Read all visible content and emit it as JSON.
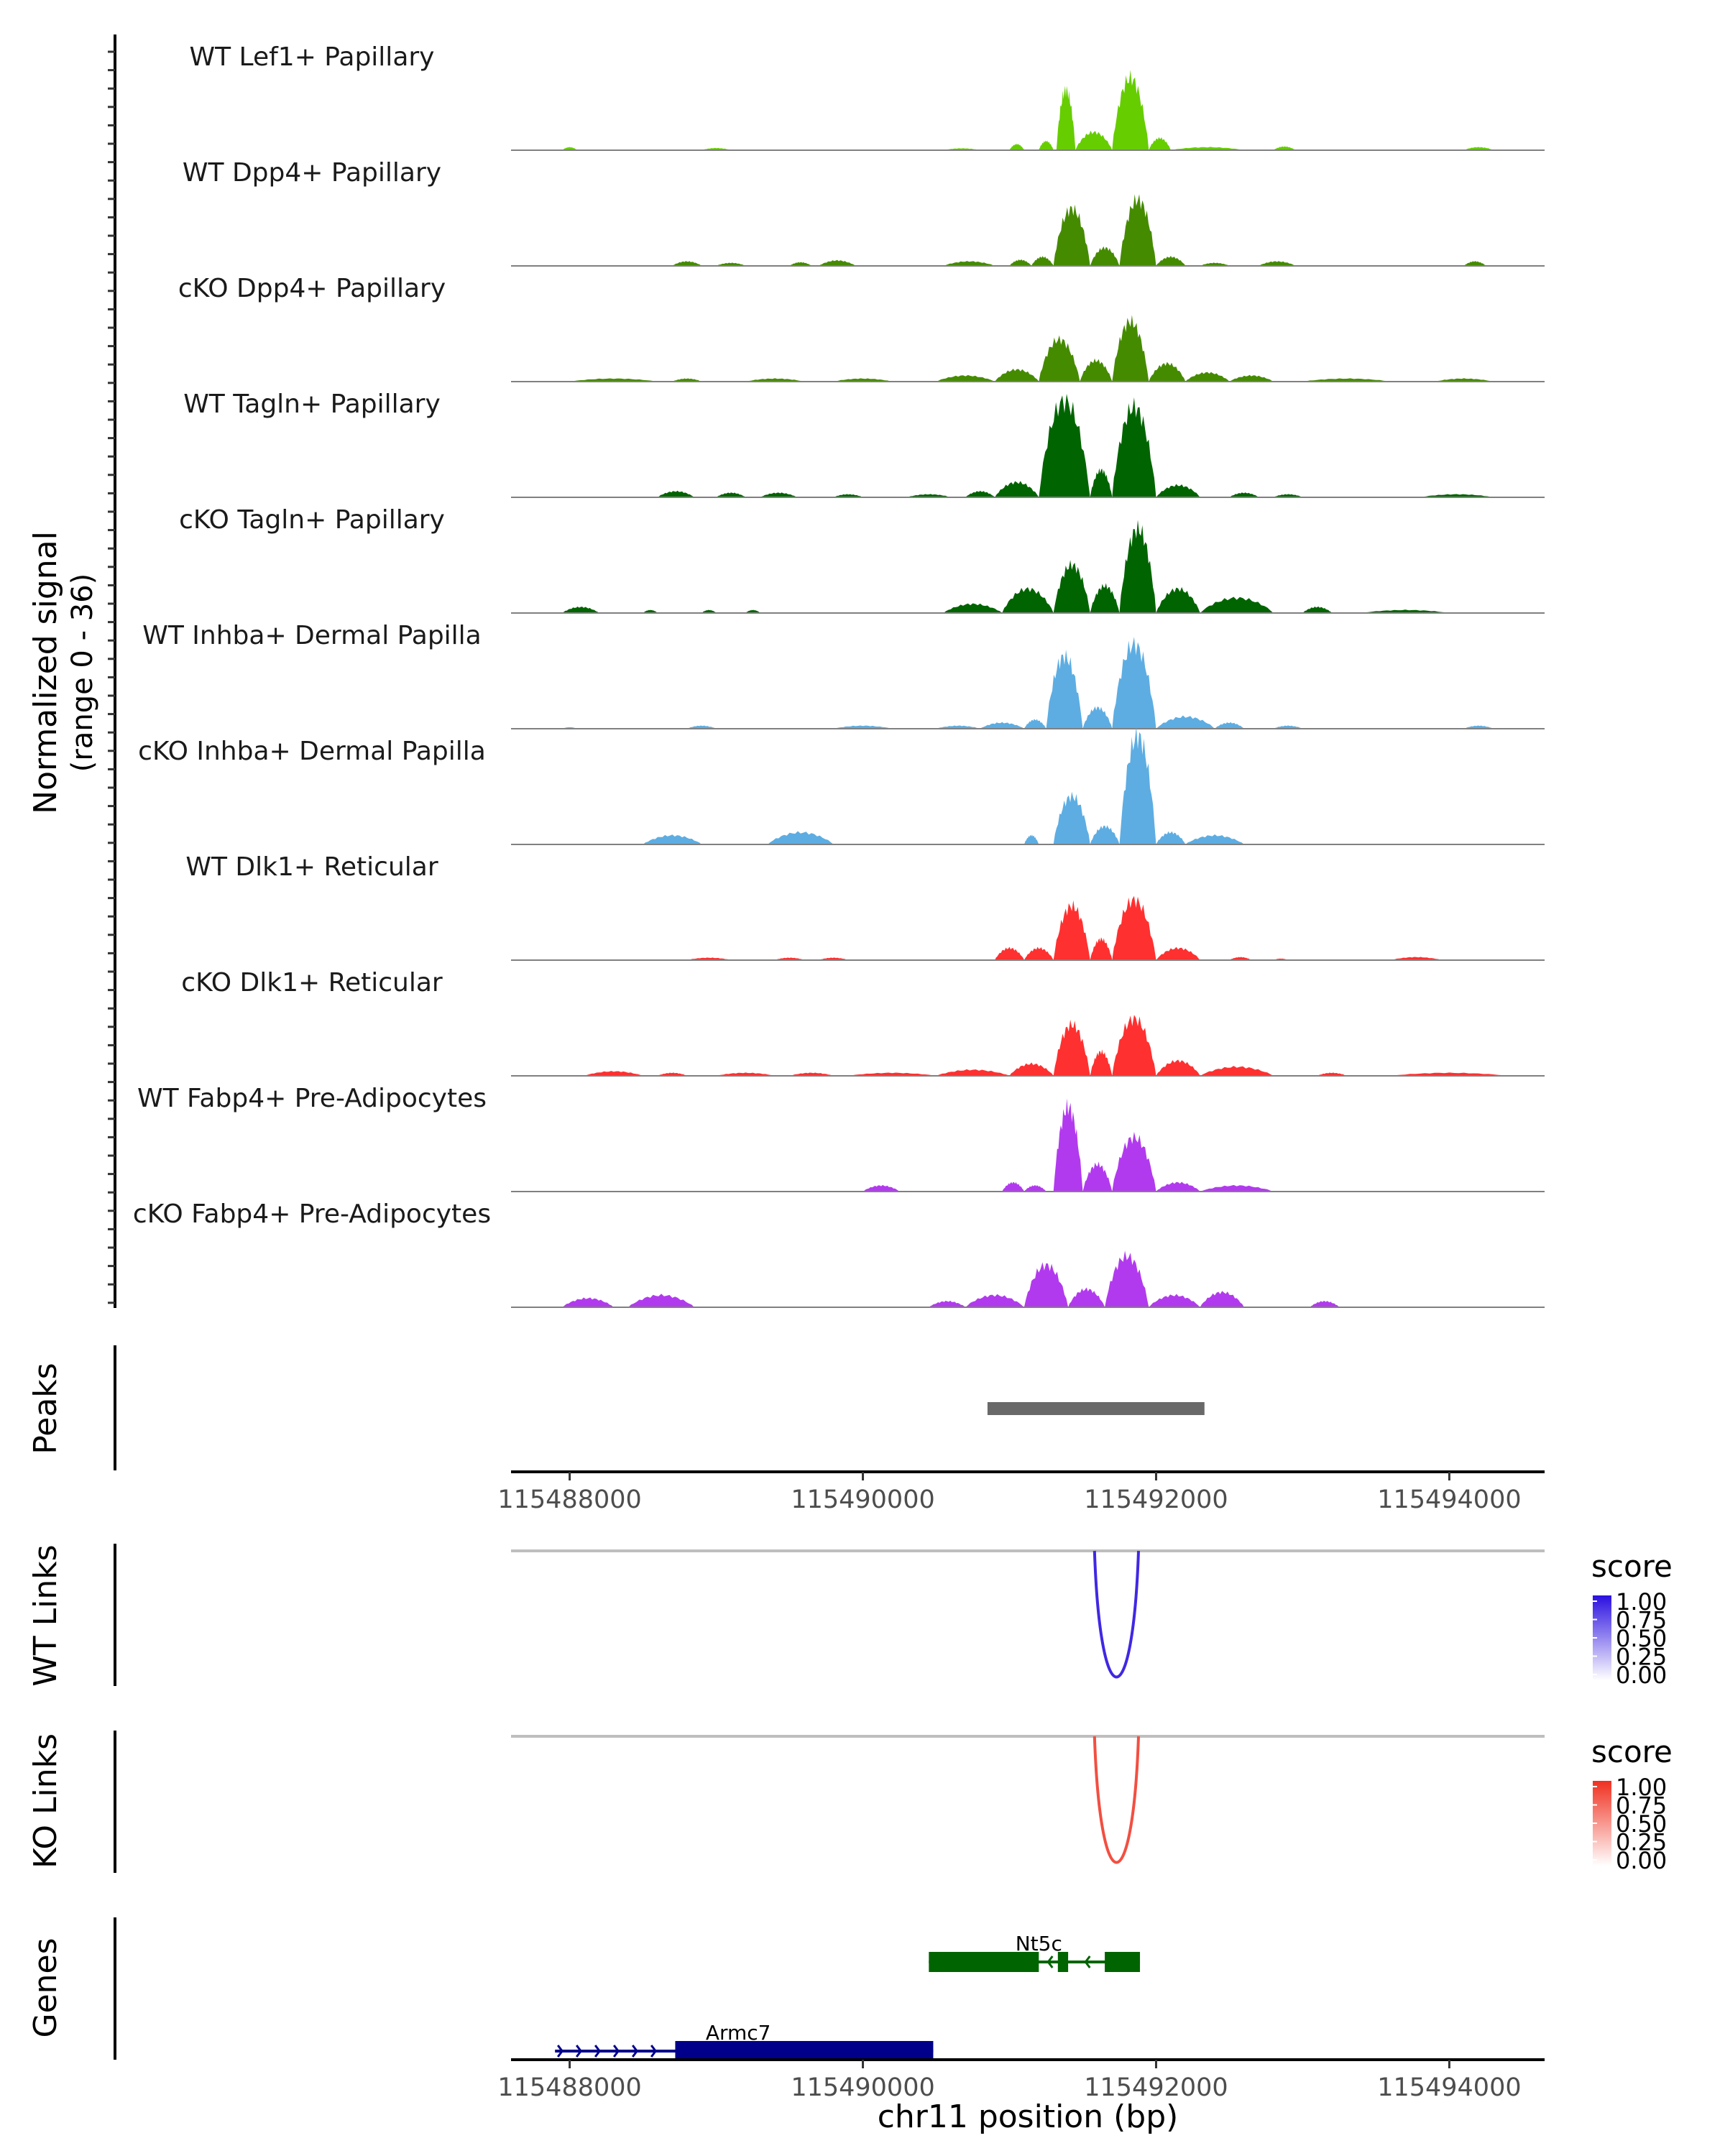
{
  "chart_data": {
    "type": "area",
    "title": "",
    "xlabel": "chr11 position (bp)",
    "xlim": [
      115487600,
      115494650
    ],
    "x_ticks": [
      115488000,
      115490000,
      115492000,
      115494000
    ],
    "x_tick_labels": [
      "115488000",
      "115490000",
      "115492000",
      "115494000"
    ],
    "coverage": {
      "ylabel": "Normalized signal",
      "ylabel_sub": "(range 0 - 36)",
      "ylim": [
        0,
        36
      ],
      "tracks": [
        {
          "name": "WT Lef1+ Papillary",
          "color": "#66cd00",
          "bumps": [
            [
              115487950,
              115488050,
              1
            ],
            [
              115488900,
              115489100,
              0.7
            ],
            [
              115490550,
              115490800,
              0.6
            ],
            [
              115491000,
              115491100,
              2
            ],
            [
              115491200,
              115491300,
              3
            ],
            [
              115491320,
              115491450,
              20
            ],
            [
              115491450,
              115491700,
              6
            ],
            [
              115491700,
              115491950,
              24
            ],
            [
              115491950,
              115492100,
              4
            ],
            [
              115492100,
              115492600,
              1
            ],
            [
              115492800,
              115492950,
              1.2
            ],
            [
              115494100,
              115494300,
              1
            ]
          ]
        },
        {
          "name": "WT Dpp4+ Papillary",
          "color": "#458b00",
          "bumps": [
            [
              115488700,
              115488900,
              1.5
            ],
            [
              115489000,
              115489200,
              1
            ],
            [
              115489500,
              115489650,
              1.2
            ],
            [
              115489700,
              115489950,
              1.8
            ],
            [
              115490550,
              115490900,
              1.5
            ],
            [
              115491000,
              115491150,
              2
            ],
            [
              115491150,
              115491300,
              3
            ],
            [
              115491300,
              115491550,
              19
            ],
            [
              115491550,
              115491750,
              6
            ],
            [
              115491750,
              115492000,
              22
            ],
            [
              115492000,
              115492200,
              3
            ],
            [
              115492300,
              115492500,
              1
            ],
            [
              115492700,
              115492950,
              1.5
            ],
            [
              115494100,
              115494250,
              1.5
            ]
          ]
        },
        {
          "name": "cKO Dpp4+ Papillary",
          "color": "#458b00",
          "bumps": [
            [
              115488000,
              115488600,
              1
            ],
            [
              115488700,
              115488900,
              1
            ],
            [
              115489200,
              115489600,
              1
            ],
            [
              115489800,
              115490200,
              1
            ],
            [
              115490500,
              115490900,
              2
            ],
            [
              115490900,
              115491200,
              4
            ],
            [
              115491200,
              115491480,
              14
            ],
            [
              115491480,
              115491700,
              7
            ],
            [
              115491700,
              115491950,
              20
            ],
            [
              115491950,
              115492200,
              6
            ],
            [
              115492200,
              115492500,
              3
            ],
            [
              115492500,
              115492800,
              2
            ],
            [
              115493000,
              115493600,
              1
            ],
            [
              115493900,
              115494300,
              1
            ]
          ]
        },
        {
          "name": "WT Tagln+ Papillary",
          "color": "#006400",
          "bumps": [
            [
              115488600,
              115488850,
              2
            ],
            [
              115489000,
              115489200,
              1.5
            ],
            [
              115489300,
              115489550,
              1.5
            ],
            [
              115489800,
              115490000,
              1
            ],
            [
              115490300,
              115490600,
              1
            ],
            [
              115490700,
              115490900,
              2
            ],
            [
              115490900,
              115491200,
              5
            ],
            [
              115491200,
              115491550,
              32
            ],
            [
              115491550,
              115491700,
              9
            ],
            [
              115491700,
              115492000,
              30
            ],
            [
              115492000,
              115492300,
              4
            ],
            [
              115492500,
              115492700,
              1.5
            ],
            [
              115492800,
              115493000,
              1
            ],
            [
              115493800,
              115494300,
              1
            ]
          ]
        },
        {
          "name": "cKO Tagln+ Papillary",
          "color": "#006400",
          "bumps": [
            [
              115487950,
              115488200,
              2
            ],
            [
              115488500,
              115488600,
              1
            ],
            [
              115488900,
              115489000,
              1
            ],
            [
              115489200,
              115489300,
              1
            ],
            [
              115490550,
              115490950,
              3
            ],
            [
              115490950,
              115491300,
              8
            ],
            [
              115491300,
              115491550,
              16
            ],
            [
              115491550,
              115491750,
              9
            ],
            [
              115491750,
              115492000,
              28
            ],
            [
              115492000,
              115492300,
              8
            ],
            [
              115492300,
              115492800,
              5
            ],
            [
              115493000,
              115493200,
              2
            ],
            [
              115493400,
              115494000,
              1
            ]
          ]
        },
        {
          "name": "WT Inhba+ Dermal Papilla",
          "color": "#5dade2",
          "bumps": [
            [
              115487950,
              115488050,
              0.5
            ],
            [
              115488800,
              115489000,
              1
            ],
            [
              115489800,
              115490200,
              1
            ],
            [
              115490500,
              115490800,
              1
            ],
            [
              115490800,
              115491100,
              2
            ],
            [
              115491100,
              115491250,
              3
            ],
            [
              115491250,
              115491500,
              24
            ],
            [
              115491500,
              115491700,
              7
            ],
            [
              115491700,
              115492000,
              28
            ],
            [
              115492000,
              115492400,
              4
            ],
            [
              115492400,
              115492600,
              2
            ],
            [
              115492800,
              115493000,
              1
            ],
            [
              115494100,
              115494300,
              1
            ]
          ]
        },
        {
          "name": "cKO Inhba+ Dermal Papilla",
          "color": "#5dade2",
          "bumps": [
            [
              115488500,
              115488900,
              3
            ],
            [
              115489350,
              115489800,
              4
            ],
            [
              115491100,
              115491200,
              3
            ],
            [
              115491300,
              115491550,
              16
            ],
            [
              115491550,
              115491750,
              6
            ],
            [
              115491750,
              115492000,
              36
            ],
            [
              115492000,
              115492200,
              4
            ],
            [
              115492200,
              115492600,
              3
            ]
          ]
        },
        {
          "name": "WT Dlk1+ Reticular",
          "color": "#ff3030",
          "bumps": [
            [
              115488800,
              115489100,
              0.8
            ],
            [
              115489400,
              115489600,
              0.8
            ],
            [
              115489700,
              115489900,
              0.8
            ],
            [
              115490900,
              115491100,
              4
            ],
            [
              115491100,
              115491300,
              4
            ],
            [
              115491300,
              115491550,
              18
            ],
            [
              115491550,
              115491700,
              7
            ],
            [
              115491700,
              115492000,
              20
            ],
            [
              115492000,
              115492300,
              4
            ],
            [
              115492500,
              115492650,
              1
            ],
            [
              115492800,
              115492900,
              0.5
            ],
            [
              115493600,
              115493950,
              1
            ]
          ]
        },
        {
          "name": "cKO Dlk1+ Reticular",
          "color": "#ff3030",
          "bumps": [
            [
              115488100,
              115488500,
              1.5
            ],
            [
              115488600,
              115488800,
              1
            ],
            [
              115489000,
              115489400,
              1
            ],
            [
              115489500,
              115489800,
              1
            ],
            [
              115489900,
              115490500,
              1
            ],
            [
              115490500,
              115491000,
              2
            ],
            [
              115491000,
              115491300,
              4
            ],
            [
              115491300,
              115491550,
              17
            ],
            [
              115491550,
              115491700,
              8
            ],
            [
              115491700,
              115492000,
              19
            ],
            [
              115492000,
              115492300,
              5
            ],
            [
              115492300,
              115492800,
              3
            ],
            [
              115493100,
              115493300,
              1
            ],
            [
              115493600,
              115494400,
              1
            ]
          ]
        },
        {
          "name": "WT Fabp4+ Pre-Adipocytes",
          "color": "#b23aee",
          "bumps": [
            [
              115490000,
              115490250,
              2
            ],
            [
              115490950,
              115491100,
              3
            ],
            [
              115491100,
              115491250,
              2
            ],
            [
              115491300,
              115491500,
              28
            ],
            [
              115491500,
              115491700,
              9
            ],
            [
              115491700,
              115492000,
              18
            ],
            [
              115492000,
              115492300,
              3
            ],
            [
              115492300,
              115492800,
              2
            ]
          ]
        },
        {
          "name": "cKO Fabp4+ Pre-Adipocytes",
          "color": "#b23aee",
          "bumps": [
            [
              115487950,
              115488300,
              3
            ],
            [
              115488400,
              115488850,
              4
            ],
            [
              115490450,
              115490700,
              2
            ],
            [
              115490700,
              115491100,
              4
            ],
            [
              115491100,
              115491400,
              14
            ],
            [
              115491400,
              115491650,
              6
            ],
            [
              115491650,
              115491950,
              17
            ],
            [
              115491950,
              115492300,
              4
            ],
            [
              115492300,
              115492600,
              5
            ],
            [
              115493050,
              115493250,
              2
            ]
          ]
        }
      ]
    },
    "peaks": {
      "ylabel": "Peaks",
      "intervals": [
        [
          115490850,
          115492330
        ]
      ],
      "color": "#696969"
    },
    "wt_links": {
      "ylabel": "WT Links",
      "links": [
        {
          "start": 115491580,
          "end": 115491880,
          "score": 0.9
        }
      ],
      "legend": {
        "title": "score",
        "ticks": [
          "1.00",
          "0.75",
          "0.50",
          "0.25",
          "0.00"
        ],
        "color_low": "#ffffff",
        "color_high": "#2b10e0"
      }
    },
    "ko_links": {
      "ylabel": "KO Links",
      "links": [
        {
          "start": 115491580,
          "end": 115491880,
          "score": 0.85
        }
      ],
      "legend": {
        "title": "score",
        "ticks": [
          "1.00",
          "0.75",
          "0.50",
          "0.25",
          "0.00"
        ],
        "color_low": "#ffffff",
        "color_high": "#f03020"
      }
    },
    "genes": {
      "ylabel": "Genes",
      "items": [
        {
          "name": "Nt5c",
          "strand": "-",
          "color": "#006400",
          "start": 115490450,
          "end": 115491890,
          "exons": [
            [
              115490450,
              115491200
            ],
            [
              115491330,
              115491400
            ],
            [
              115491650,
              115491890
            ]
          ]
        },
        {
          "name": "Armc7",
          "strand": "+",
          "color": "#00008b",
          "start": 115487900,
          "end": 115490480,
          "exons": [
            [
              115488720,
              115490480
            ]
          ]
        }
      ]
    }
  }
}
